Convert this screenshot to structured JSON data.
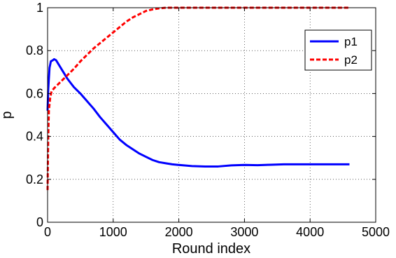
{
  "chart_data": {
    "type": "line",
    "title": "",
    "xlabel": "Round index",
    "ylabel": "p",
    "xlim": [
      0,
      5000
    ],
    "ylim": [
      0,
      1
    ],
    "x_ticks": [
      0,
      1000,
      2000,
      3000,
      4000,
      5000
    ],
    "y_ticks": [
      0,
      0.2,
      0.4,
      0.6,
      0.8,
      1
    ],
    "x_tick_labels": [
      "0",
      "1000",
      "2000",
      "3000",
      "4000",
      "5000"
    ],
    "y_tick_labels": [
      "0",
      "0.2",
      "0.4",
      "0.6",
      "0.8",
      "1"
    ],
    "grid": "dotted",
    "legend_position": "top-right",
    "series": [
      {
        "name": "p1",
        "color": "#0000ff",
        "style": "solid",
        "x": [
          0,
          10,
          30,
          50,
          80,
          100,
          130,
          160,
          200,
          250,
          300,
          350,
          400,
          500,
          600,
          700,
          800,
          900,
          1000,
          1100,
          1200,
          1300,
          1400,
          1500,
          1600,
          1700,
          1800,
          1900,
          2000,
          2200,
          2400,
          2600,
          2800,
          3000,
          3200,
          3400,
          3600,
          3800,
          4000,
          4200,
          4400,
          4600
        ],
        "y": [
          0.52,
          0.62,
          0.72,
          0.75,
          0.755,
          0.76,
          0.755,
          0.74,
          0.72,
          0.695,
          0.67,
          0.65,
          0.63,
          0.6,
          0.565,
          0.53,
          0.49,
          0.455,
          0.42,
          0.385,
          0.36,
          0.34,
          0.32,
          0.305,
          0.29,
          0.28,
          0.275,
          0.27,
          0.267,
          0.262,
          0.26,
          0.26,
          0.265,
          0.267,
          0.266,
          0.268,
          0.27,
          0.27,
          0.27,
          0.27,
          0.27,
          0.27
        ]
      },
      {
        "name": "p2",
        "color": "#ff0000",
        "style": "dashed",
        "x": [
          0,
          10,
          20,
          40,
          60,
          100,
          150,
          200,
          300,
          400,
          500,
          600,
          700,
          800,
          900,
          1000,
          1100,
          1200,
          1300,
          1400,
          1500,
          1600,
          1700,
          1800,
          2000,
          2500,
          3000,
          3500,
          4000,
          4600
        ],
        "y": [
          0.15,
          0.4,
          0.52,
          0.58,
          0.61,
          0.625,
          0.64,
          0.655,
          0.685,
          0.715,
          0.75,
          0.78,
          0.81,
          0.835,
          0.86,
          0.885,
          0.91,
          0.935,
          0.955,
          0.97,
          0.985,
          0.992,
          0.997,
          1.0,
          1.0,
          1.0,
          1.0,
          1.0,
          1.0,
          1.0
        ]
      }
    ]
  }
}
